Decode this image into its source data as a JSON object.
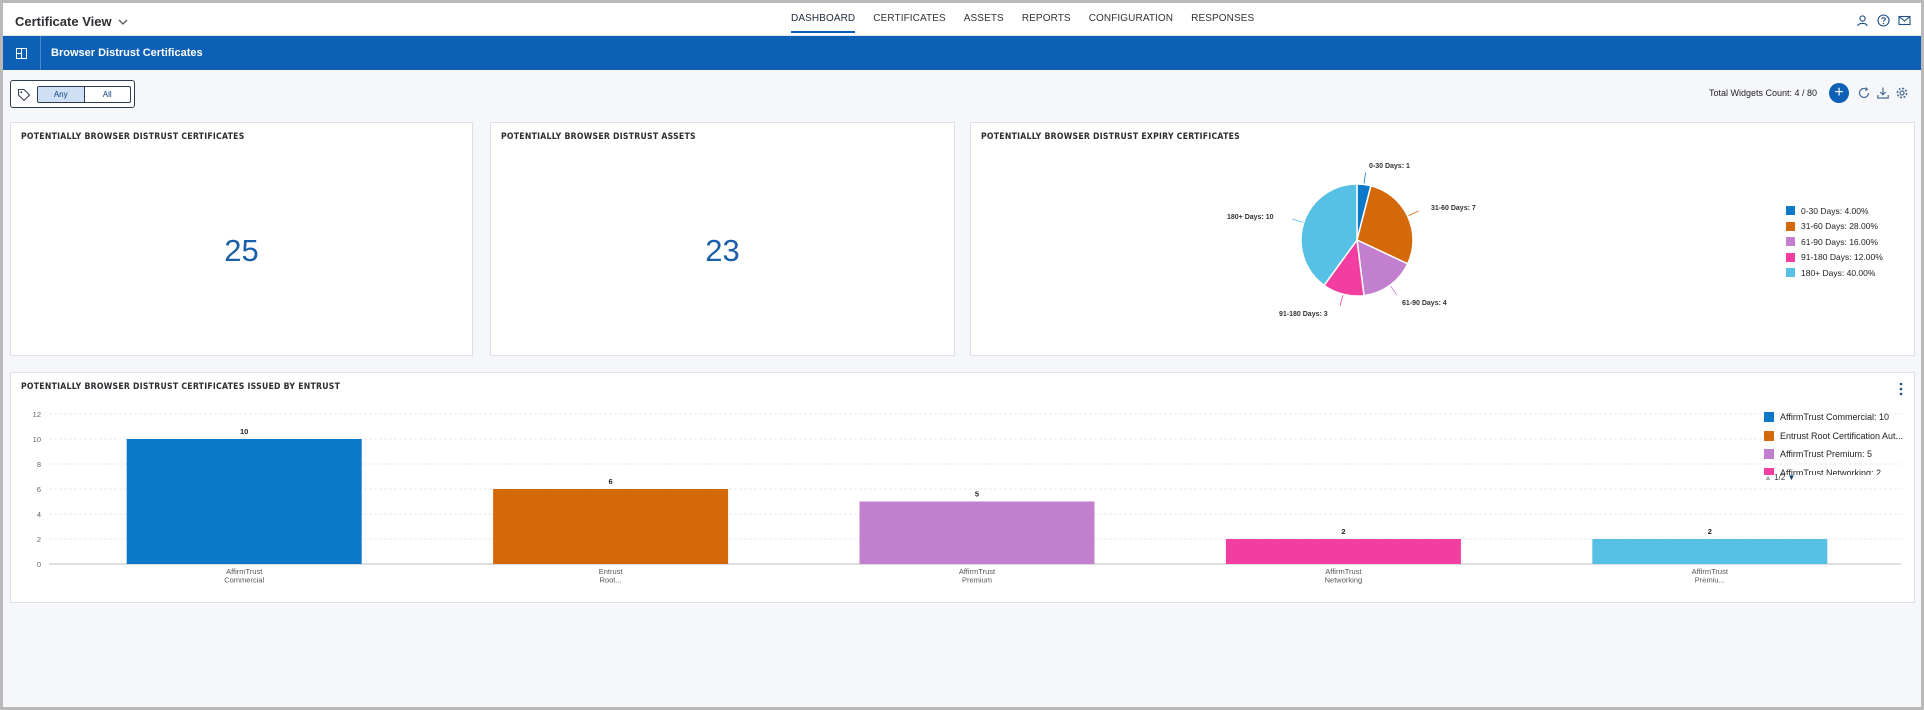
{
  "app": {
    "title": "Certificate View",
    "nav": [
      "DASHBOARD",
      "CERTIFICATES",
      "ASSETS",
      "REPORTS",
      "CONFIGURATION",
      "RESPONSES"
    ],
    "active_nav": "DASHBOARD",
    "top_icons": [
      "user-icon",
      "help-icon",
      "mail-icon"
    ]
  },
  "dashboard": {
    "title": "Browser Distrust Certificates",
    "filter": {
      "options": [
        "Any",
        "All"
      ],
      "selected": "Any"
    },
    "widgets_count": "Total Widgets Count: 4 / 80",
    "tools": [
      "add-icon",
      "refresh-icon",
      "download-icon",
      "settings-icon"
    ]
  },
  "widgets": {
    "certs": {
      "title": "POTENTIALLY BROWSER DISTRUST CERTIFICATES",
      "value": "25"
    },
    "assets": {
      "title": "POTENTIALLY BROWSER DISTRUST ASSETS",
      "value": "23"
    },
    "expiry": {
      "title": "POTENTIALLY BROWSER DISTRUST EXPIRY CERTIFICATES",
      "chart_data": {
        "type": "pie",
        "slices": [
          {
            "label": "0-30 Days",
            "value": 1,
            "percent": "4.00%",
            "color": "#0b78c8"
          },
          {
            "label": "31-60 Days",
            "value": 7,
            "percent": "28.00%",
            "color": "#d4690a"
          },
          {
            "label": "61-90 Days",
            "value": 4,
            "percent": "16.00%",
            "color": "#c17fce"
          },
          {
            "label": "91-180 Days",
            "value": 3,
            "percent": "12.00%",
            "color": "#f23ea0"
          },
          {
            "label": "180+ Days",
            "value": 10,
            "percent": "40.00%",
            "color": "#56c1e4"
          }
        ],
        "slice_labels": [
          "0-30 Days: 1",
          "31-60 Days: 7",
          "61-90 Days: 4",
          "91-180 Days: 3",
          "180+ Days: 10"
        ],
        "legend": [
          "0-30 Days: 4.00%",
          "31-60 Days: 28.00%",
          "61-90 Days: 16.00%",
          "91-180 Days: 12.00%",
          "180+ Days: 40.00%"
        ],
        "legend_placement": "right"
      }
    },
    "entrust": {
      "title": "POTENTIALLY BROWSER DISTRUST CERTIFICATES ISSUED BY ENTRUST",
      "chart_data": {
        "type": "bar",
        "categories": [
          [
            "AffirmTrust",
            "Commercial"
          ],
          [
            "Entrust",
            "Root..."
          ],
          [
            "AffirmTrust",
            "Premium"
          ],
          [
            "AffirmTrust",
            "Networking"
          ],
          [
            "AffirmTrust",
            "Premiu..."
          ]
        ],
        "values": [
          10,
          6,
          5,
          2,
          2
        ],
        "data_labels": [
          "10",
          "6",
          "5",
          "2",
          "2"
        ],
        "colors": [
          "#0b78c8",
          "#d4690a",
          "#c17fce",
          "#f23ea0",
          "#56c1e4"
        ],
        "y_ticks": [
          "0",
          "2",
          "4",
          "6",
          "8",
          "10",
          "12"
        ],
        "ylim": [
          0,
          12
        ],
        "grid": true,
        "legend": [
          "AffirmTrust Commercial: 10",
          "Entrust Root Certification Aut...",
          "AffirmTrust Premium: 5",
          "AffirmTrust Networking: 2"
        ],
        "legend_placement": "top-right",
        "legend_page": "1/2"
      }
    }
  }
}
